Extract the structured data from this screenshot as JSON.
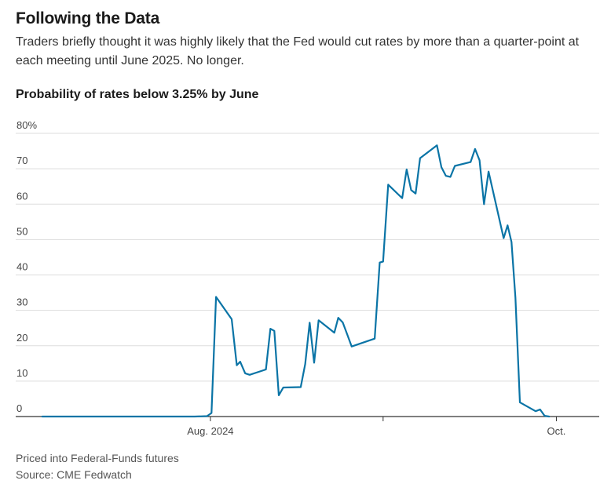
{
  "header": {
    "title": "Following the Data",
    "subtitle": "Traders briefly thought it was highly likely that the Fed would cut rates by more than a quarter-point at each meeting until June 2025. No longer."
  },
  "chart_heading": "Probability of rates below 3.25% by June",
  "footer": {
    "note": "Priced into Federal-Funds futures",
    "source": "Source: CME Fedwatch"
  },
  "colors": {
    "line": "#0a74a6",
    "grid": "#dddddd",
    "axis": "#333333"
  },
  "chart_data": {
    "type": "line",
    "title": "Probability of rates below 3.25% by June",
    "xlabel": "",
    "ylabel": "",
    "ylim": [
      0,
      80
    ],
    "xlim": [
      0,
      100
    ],
    "yticks": [
      {
        "value": 80,
        "label": "80%"
      },
      {
        "value": 70,
        "label": "70"
      },
      {
        "value": 60,
        "label": "60"
      },
      {
        "value": 50,
        "label": "50"
      },
      {
        "value": 40,
        "label": "40"
      },
      {
        "value": 30,
        "label": "30"
      },
      {
        "value": 20,
        "label": "20"
      },
      {
        "value": 10,
        "label": "10"
      },
      {
        "value": 0,
        "label": "0"
      }
    ],
    "xticks": [
      {
        "x": 30.8,
        "label": "Aug. 2024"
      },
      {
        "x": 61.6,
        "label": ""
      },
      {
        "x": 92.5,
        "label": "Oct."
      }
    ],
    "grid": true,
    "series": [
      {
        "name": "",
        "points": [
          [
            0.8,
            0
          ],
          [
            14,
            0
          ],
          [
            22,
            0
          ],
          [
            28,
            0
          ],
          [
            30.2,
            0.1
          ],
          [
            31.0,
            1.0
          ],
          [
            31.8,
            33.8
          ],
          [
            34.6,
            27.5
          ],
          [
            35.5,
            14.5
          ],
          [
            36.1,
            15.5
          ],
          [
            37.0,
            12.2
          ],
          [
            37.8,
            11.8
          ],
          [
            40.7,
            13.3
          ],
          [
            41.5,
            24.8
          ],
          [
            42.2,
            24.2
          ],
          [
            43.0,
            6.0
          ],
          [
            43.8,
            8.2
          ],
          [
            46.9,
            8.3
          ],
          [
            47.7,
            14.8
          ],
          [
            48.5,
            26.5
          ],
          [
            49.3,
            15.2
          ],
          [
            50.1,
            27.2
          ],
          [
            52.9,
            23.7
          ],
          [
            53.6,
            27.9
          ],
          [
            54.4,
            26.6
          ],
          [
            55.2,
            23.2
          ],
          [
            56.0,
            19.8
          ],
          [
            60.1,
            22.0
          ],
          [
            61.0,
            43.5
          ],
          [
            61.6,
            43.8
          ],
          [
            62.5,
            65.5
          ],
          [
            65.0,
            61.7
          ],
          [
            65.8,
            69.8
          ],
          [
            66.6,
            64.0
          ],
          [
            67.4,
            63.0
          ],
          [
            68.2,
            73.0
          ],
          [
            71.2,
            76.6
          ],
          [
            72.0,
            70.4
          ],
          [
            72.8,
            68.0
          ],
          [
            73.6,
            67.7
          ],
          [
            74.4,
            70.8
          ],
          [
            77.2,
            71.9
          ],
          [
            78.0,
            75.6
          ],
          [
            78.8,
            72.4
          ],
          [
            79.6,
            60.0
          ],
          [
            80.4,
            69.2
          ],
          [
            83.1,
            50.4
          ],
          [
            83.8,
            54.0
          ],
          [
            84.5,
            49.3
          ],
          [
            85.2,
            33.6
          ],
          [
            86.0,
            4.0
          ],
          [
            88.8,
            1.5
          ],
          [
            89.6,
            2.0
          ],
          [
            90.4,
            0.2
          ],
          [
            91.2,
            0.0
          ]
        ]
      }
    ]
  }
}
